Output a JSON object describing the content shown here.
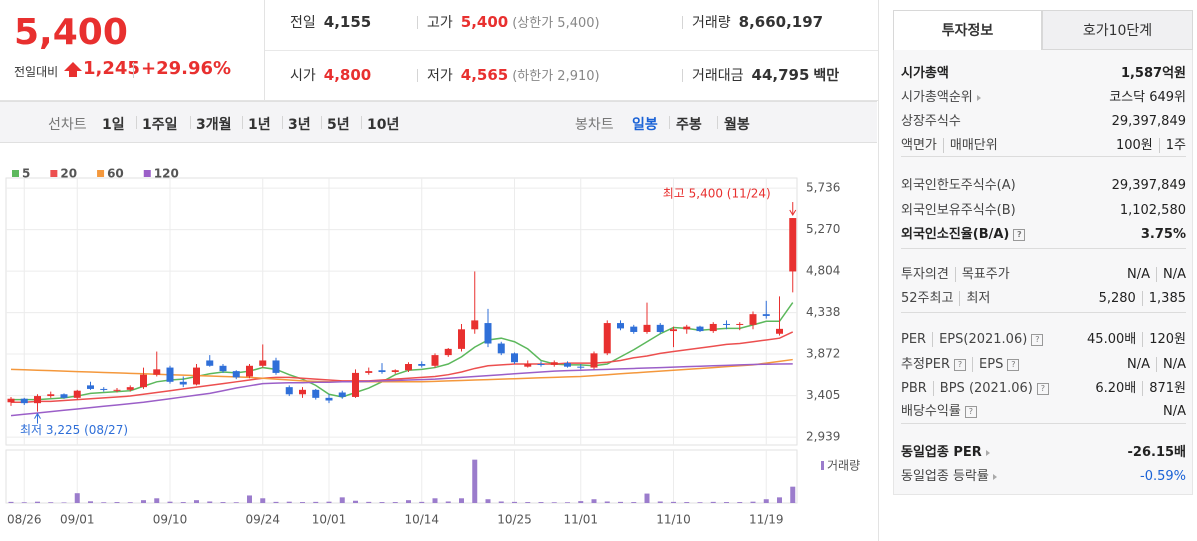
{
  "header": {
    "price": "5,400",
    "change_label": "전일대비",
    "change": "1,245",
    "rate": "+29.96%",
    "stats": [
      {
        "label": "전일",
        "value": "4,155"
      },
      {
        "label": "고가",
        "value": "5,400",
        "note": "(상한가 5,400)"
      },
      {
        "label": "거래량",
        "value": "8,660,197"
      },
      {
        "label": "시가",
        "value": "4,800"
      },
      {
        "label": "저가",
        "value": "4,565",
        "note": "(하한가 2,910)"
      },
      {
        "label": "거래대금",
        "value": "44,795",
        "unit": "백만"
      }
    ]
  },
  "toolbar": {
    "line_label": "선차트",
    "periods": [
      "1일",
      "1주일",
      "3개월",
      "1년",
      "3년",
      "5년",
      "10년"
    ],
    "candle_label": "봉차트",
    "candle_periods": [
      "일봉",
      "주봉",
      "월봉"
    ]
  },
  "panel": {
    "tabs": [
      "투자정보",
      "호가10단계"
    ],
    "groups": [
      [
        {
          "label": [
            "시가총액"
          ],
          "value": [
            "1,587억원"
          ]
        },
        {
          "label": [
            "시가총액순위"
          ],
          "value": [
            "코스닥 649위"
          ]
        },
        {
          "label": [
            "상장주식수"
          ],
          "value": [
            "29,397,849"
          ]
        },
        {
          "label": [
            "액면가",
            "매매단위"
          ],
          "value": [
            "100원",
            "1주"
          ]
        }
      ],
      [
        {
          "label": [
            "외국인한도주식수(A)"
          ],
          "value": [
            "29,397,849"
          ]
        },
        {
          "label": [
            "외국인보유주식수(B)"
          ],
          "value": [
            "1,102,580"
          ]
        },
        {
          "label": [
            "외국인소진율(B/A)"
          ],
          "value": [
            "3.75%"
          ]
        }
      ],
      [
        {
          "label": [
            "투자의견",
            "목표주가"
          ],
          "value": [
            "N/A",
            "N/A"
          ]
        },
        {
          "label": [
            "52주최고",
            "최저"
          ],
          "value": [
            "5,280",
            "1,385"
          ]
        }
      ],
      [
        {
          "label": [
            "PER",
            "EPS(2021.06)"
          ],
          "value": [
            "45.00배",
            "120원"
          ]
        },
        {
          "label": [
            "추정PER",
            "EPS"
          ],
          "value": [
            "N/A",
            "N/A"
          ]
        },
        {
          "label": [
            "PBR",
            "BPS (2021.06)"
          ],
          "value": [
            "6.20배",
            "871원"
          ]
        },
        {
          "label": [
            "배당수익률"
          ],
          "value": [
            "N/A"
          ]
        }
      ],
      [
        {
          "label": [
            "동일업종 PER"
          ],
          "value": [
            "-26.15배"
          ]
        },
        {
          "label": [
            "동일업종 등락률"
          ],
          "value": [
            "-0.59%"
          ]
        }
      ]
    ]
  },
  "chart_data": {
    "type": "candlestick",
    "categories": [
      null,
      "08/26",
      null,
      null,
      null,
      "09/01",
      null,
      null,
      null,
      null,
      null,
      null,
      "09/10",
      null,
      null,
      null,
      null,
      null,
      null,
      "09/24",
      null,
      null,
      null,
      null,
      "10/01",
      null,
      null,
      null,
      null,
      null,
      null,
      "10/14",
      null,
      null,
      null,
      null,
      null,
      null,
      "10/25",
      null,
      null,
      null,
      null,
      "11/01",
      null,
      null,
      null,
      null,
      null,
      null,
      "11/10",
      null,
      null,
      null,
      null,
      null,
      null,
      "11/19",
      null,
      null
    ],
    "ohlc": [
      [
        3330,
        3390,
        3290,
        3370
      ],
      [
        3370,
        3380,
        3300,
        3320
      ],
      [
        3320,
        3420,
        3225,
        3400
      ],
      [
        3400,
        3450,
        3380,
        3420
      ],
      [
        3420,
        3430,
        3370,
        3380
      ],
      [
        3380,
        3470,
        3360,
        3460
      ],
      [
        3520,
        3560,
        3470,
        3480
      ],
      [
        3480,
        3500,
        3450,
        3470
      ],
      [
        3460,
        3490,
        3440,
        3470
      ],
      [
        3470,
        3520,
        3450,
        3500
      ],
      [
        3500,
        3720,
        3480,
        3640
      ],
      [
        3640,
        3900,
        3620,
        3700
      ],
      [
        3720,
        3740,
        3540,
        3560
      ],
      [
        3560,
        3620,
        3500,
        3530
      ],
      [
        3530,
        3760,
        3520,
        3720
      ],
      [
        3800,
        3860,
        3730,
        3740
      ],
      [
        3740,
        3760,
        3660,
        3680
      ],
      [
        3680,
        3690,
        3590,
        3610
      ],
      [
        3620,
        3760,
        3600,
        3740
      ],
      [
        3740,
        3980,
        3720,
        3800
      ],
      [
        3800,
        3830,
        3640,
        3660
      ],
      [
        3500,
        3520,
        3400,
        3420
      ],
      [
        3420,
        3500,
        3380,
        3470
      ],
      [
        3470,
        3480,
        3360,
        3380
      ],
      [
        3380,
        3420,
        3320,
        3350
      ],
      [
        3440,
        3460,
        3370,
        3390
      ],
      [
        3390,
        3700,
        3380,
        3660
      ],
      [
        3660,
        3720,
        3640,
        3680
      ],
      [
        3690,
        3770,
        3650,
        3670
      ],
      [
        3670,
        3700,
        3650,
        3690
      ],
      [
        3690,
        3780,
        3670,
        3760
      ],
      [
        3760,
        3790,
        3720,
        3740
      ],
      [
        3740,
        3880,
        3720,
        3860
      ],
      [
        3860,
        3940,
        3840,
        3930
      ],
      [
        3930,
        4210,
        3900,
        4150
      ],
      [
        4150,
        4800,
        4100,
        4250
      ],
      [
        4220,
        4380,
        3950,
        3990
      ],
      [
        3990,
        4010,
        3860,
        3880
      ],
      [
        3880,
        3890,
        3760,
        3780
      ],
      [
        3730,
        3800,
        3720,
        3760
      ],
      [
        3760,
        3790,
        3730,
        3750
      ],
      [
        3750,
        3800,
        3730,
        3780
      ],
      [
        3770,
        3790,
        3720,
        3730
      ],
      [
        3730,
        3760,
        3700,
        3720
      ],
      [
        3720,
        3900,
        3700,
        3880
      ],
      [
        3880,
        4250,
        3860,
        4220
      ],
      [
        4220,
        4250,
        4140,
        4160
      ],
      [
        4180,
        4200,
        4100,
        4120
      ],
      [
        4120,
        4450,
        4100,
        4200
      ],
      [
        4200,
        4220,
        4100,
        4120
      ],
      [
        4130,
        4180,
        3950,
        4150
      ],
      [
        4150,
        4200,
        4100,
        4180
      ],
      [
        4180,
        4190,
        4120,
        4130
      ],
      [
        4130,
        4230,
        4110,
        4210
      ],
      [
        4210,
        4250,
        4150,
        4200
      ],
      [
        4200,
        4230,
        4140,
        4210
      ],
      [
        4200,
        4350,
        4150,
        4320
      ],
      [
        4320,
        4470,
        4270,
        4300
      ],
      [
        4100,
        4520,
        4080,
        4155
      ],
      [
        4800,
        5400,
        4565,
        5400
      ]
    ],
    "up_color": "#e8302f",
    "down_color": "#2f6fd8",
    "series": [
      {
        "name": "5",
        "color": "#5cb85c",
        "values": [
          3360,
          3360,
          3360,
          3370,
          3380,
          3400,
          3430,
          3440,
          3450,
          3460,
          3510,
          3560,
          3580,
          3590,
          3620,
          3650,
          3670,
          3660,
          3680,
          3720,
          3700,
          3640,
          3590,
          3520,
          3420,
          3390,
          3440,
          3490,
          3560,
          3640,
          3690,
          3700,
          3720,
          3760,
          3840,
          3950,
          4030,
          4050,
          4010,
          3930,
          3800,
          3760,
          3750,
          3750,
          3740,
          3760,
          3840,
          3920,
          4010,
          4100,
          4170,
          4160,
          4140,
          4150,
          4160,
          4160,
          4200,
          4240,
          4240,
          4450
        ]
      },
      {
        "name": "20",
        "color": "#ec4f4f",
        "values": [
          3330,
          3330,
          3340,
          3340,
          3350,
          3360,
          3370,
          3380,
          3390,
          3400,
          3420,
          3440,
          3460,
          3480,
          3500,
          3520,
          3540,
          3560,
          3580,
          3600,
          3610,
          3610,
          3600,
          3590,
          3580,
          3570,
          3570,
          3570,
          3580,
          3590,
          3600,
          3610,
          3620,
          3640,
          3670,
          3710,
          3740,
          3750,
          3760,
          3760,
          3760,
          3760,
          3770,
          3770,
          3770,
          3780,
          3800,
          3830,
          3850,
          3880,
          3900,
          3920,
          3940,
          3960,
          3980,
          3990,
          4010,
          4030,
          4050,
          4120
        ]
      },
      {
        "name": "60",
        "color": "#f4983c",
        "values": [
          3700,
          3695,
          3690,
          3685,
          3680,
          3675,
          3670,
          3665,
          3660,
          3655,
          3650,
          3645,
          3640,
          3635,
          3630,
          3625,
          3620,
          3615,
          3610,
          3600,
          3590,
          3580,
          3570,
          3565,
          3560,
          3560,
          3560,
          3560,
          3560,
          3560,
          3560,
          3560,
          3565,
          3570,
          3575,
          3580,
          3585,
          3590,
          3595,
          3600,
          3605,
          3610,
          3615,
          3620,
          3630,
          3640,
          3650,
          3660,
          3670,
          3680,
          3690,
          3700,
          3710,
          3720,
          3730,
          3740,
          3750,
          3770,
          3790,
          3810
        ]
      },
      {
        "name": "120",
        "color": "#9b5fc8",
        "values": [
          3180,
          3195,
          3210,
          3225,
          3240,
          3255,
          3270,
          3285,
          3300,
          3315,
          3330,
          3350,
          3370,
          3390,
          3410,
          3430,
          3460,
          3490,
          3515,
          3540,
          3545,
          3550,
          3550,
          3555,
          3555,
          3560,
          3560,
          3565,
          3570,
          3575,
          3580,
          3585,
          3590,
          3600,
          3610,
          3620,
          3630,
          3640,
          3650,
          3660,
          3670,
          3680,
          3685,
          3690,
          3695,
          3700,
          3705,
          3710,
          3715,
          3720,
          3725,
          3730,
          3735,
          3740,
          3745,
          3750,
          3755,
          3758,
          3760,
          3762
        ]
      }
    ],
    "volume": {
      "name": "거래량",
      "color": "#9b7ccc",
      "ylim": [
        0,
        26000000
      ],
      "values": [
        600000,
        400000,
        700000,
        400000,
        300000,
        5200000,
        900000,
        400000,
        500000,
        400000,
        1500000,
        2500000,
        700000,
        500000,
        1500000,
        800000,
        500000,
        400000,
        4000000,
        2500000,
        600000,
        700000,
        500000,
        600000,
        700000,
        3000000,
        1200000,
        600000,
        500000,
        500000,
        1500000,
        600000,
        2500000,
        800000,
        2500000,
        23000000,
        2000000,
        800000,
        600000,
        500000,
        500000,
        400000,
        400000,
        1000000,
        2000000,
        800000,
        600000,
        500000,
        5000000,
        800000,
        600000,
        500000,
        400000,
        600000,
        500000,
        500000,
        700000,
        2000000,
        3000000,
        8660197
      ]
    },
    "ylim": [
      2850,
      5850
    ],
    "yticks": [
      {
        "value": 5736,
        "label": "5,736"
      },
      {
        "value": 5270,
        "label": "5,270"
      },
      {
        "value": 4804,
        "label": "4,804"
      },
      {
        "value": 4338,
        "label": "4,338"
      },
      {
        "value": 3872,
        "label": "3,872"
      },
      {
        "value": 3405,
        "label": "3,405"
      },
      {
        "value": 2939,
        "label": "2,939"
      }
    ],
    "grid": true,
    "annotations": {
      "high": "최고 5,400 (11/24)",
      "low": "최저 3,225 (08/27)"
    }
  }
}
